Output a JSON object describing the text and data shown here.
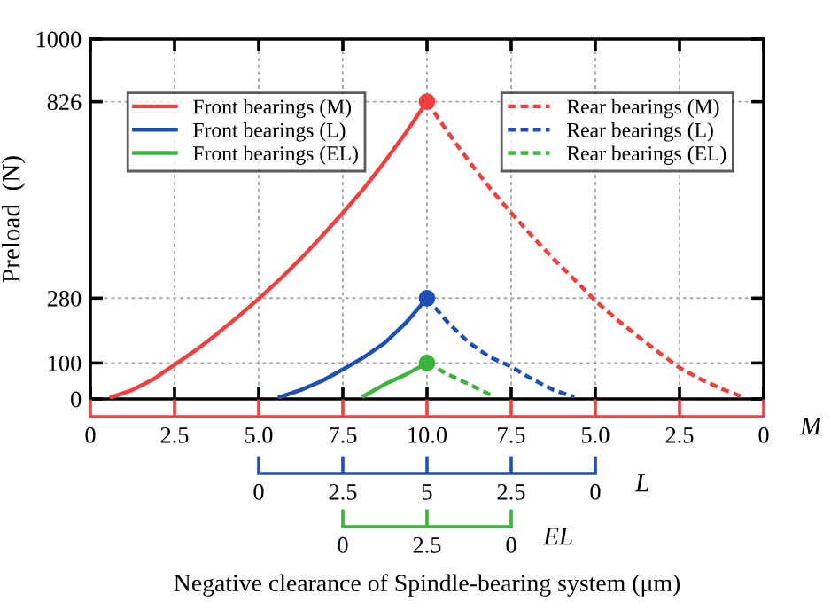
{
  "chart_data": [
    {
      "type": "line",
      "ylabel": "Preload  (N)",
      "xlabel": "M",
      "categories": [
        "0",
        null,
        null,
        null,
        "2.5",
        null,
        null,
        null,
        "5.0",
        null,
        null,
        null,
        "7.5",
        null,
        null,
        null,
        "10.0",
        null,
        null,
        null,
        "7.5",
        null,
        null,
        null,
        "5.0",
        null,
        null,
        null,
        "2.5",
        null,
        null,
        null,
        "0"
      ],
      "ylim": [
        0,
        1000
      ],
      "yticks": [
        0,
        100,
        280,
        826,
        1000
      ],
      "grid": true,
      "legend": "top",
      "marker": "none",
      "series": [
        {
          "name": "Front bearings (M)",
          "color": "#f04040",
          "line_style": "solid",
          "values": [
            null,
            5,
            25,
            55,
            95,
            135,
            180,
            228,
            278,
            332,
            390,
            452,
            517,
            585,
            660,
            740,
            826,
            null,
            null,
            null,
            null,
            null,
            null,
            null,
            null,
            null,
            null,
            null,
            null,
            null,
            null,
            null,
            null
          ]
        },
        {
          "name": "Front bearings (L)",
          "color": "#1f4fb4",
          "line_style": "solid",
          "values": [
            null,
            null,
            null,
            null,
            null,
            null,
            null,
            null,
            null,
            5,
            25,
            50,
            82,
            116,
            156,
            212,
            280,
            null,
            null,
            null,
            null,
            null,
            null,
            null,
            null,
            null,
            null,
            null,
            null,
            null,
            null,
            null,
            null
          ]
        },
        {
          "name": "Front bearings (EL)",
          "color": "#3cb43c",
          "line_style": "solid",
          "values": [
            null,
            null,
            null,
            null,
            null,
            null,
            null,
            null,
            null,
            null,
            null,
            null,
            null,
            8,
            41,
            68,
            100,
            null,
            null,
            null,
            null,
            null,
            null,
            null,
            null,
            null,
            null,
            null,
            null,
            null,
            null,
            null,
            null
          ]
        },
        {
          "name": "Rear bearings (M)",
          "color": "#f04040",
          "line_style": "dashed",
          "values": [
            null,
            null,
            null,
            null,
            null,
            null,
            null,
            null,
            null,
            null,
            null,
            null,
            null,
            null,
            null,
            null,
            826,
            740,
            660,
            585,
            517,
            452,
            390,
            332,
            273,
            222,
            175,
            130,
            87,
            55,
            28,
            6,
            null
          ]
        },
        {
          "name": "Rear bearings (L)",
          "color": "#1f4fb4",
          "line_style": "dashed",
          "values": [
            null,
            null,
            null,
            null,
            null,
            null,
            null,
            null,
            null,
            null,
            null,
            null,
            null,
            null,
            null,
            null,
            280,
            212,
            156,
            116,
            90,
            55,
            25,
            6,
            null,
            null,
            null,
            null,
            null,
            null,
            null,
            null,
            null
          ]
        },
        {
          "name": "Rear bearings (EL)",
          "color": "#3cb43c",
          "line_style": "dashed",
          "values": [
            null,
            null,
            null,
            null,
            null,
            null,
            null,
            null,
            null,
            null,
            null,
            null,
            null,
            null,
            null,
            null,
            100,
            68,
            41,
            12,
            null,
            null,
            null,
            null,
            null,
            null,
            null,
            null,
            null,
            null,
            null,
            null,
            null
          ]
        },
        {
          "type": "scatter",
          "marker": "circle",
          "color": "#f04040",
          "values": [
            null,
            null,
            null,
            null,
            null,
            null,
            null,
            null,
            null,
            null,
            null,
            null,
            null,
            null,
            null,
            null,
            826,
            null,
            null,
            null,
            null,
            null,
            null,
            null,
            null,
            null,
            null,
            null,
            null,
            null,
            null,
            null,
            null
          ]
        },
        {
          "type": "scatter",
          "marker": "circle",
          "color": "#1f4fb4",
          "values": [
            null,
            null,
            null,
            null,
            null,
            null,
            null,
            null,
            null,
            null,
            null,
            null,
            null,
            null,
            null,
            null,
            280,
            null,
            null,
            null,
            null,
            null,
            null,
            null,
            null,
            null,
            null,
            null,
            null,
            null,
            null,
            null,
            null
          ]
        },
        {
          "type": "scatter",
          "marker": "circle",
          "color": "#3cb43c",
          "values": [
            null,
            null,
            null,
            null,
            null,
            null,
            null,
            null,
            null,
            null,
            null,
            null,
            null,
            null,
            null,
            null,
            100,
            null,
            null,
            null,
            null,
            null,
            null,
            null,
            null,
            null,
            null,
            null,
            null,
            null,
            null,
            null,
            null
          ]
        }
      ]
    },
    {
      "type": "other",
      "xlabel": "L",
      "categories": [
        "0",
        "2.5",
        "5",
        "2.5",
        "0"
      ]
    },
    {
      "type": "other",
      "xlabel": "EL",
      "categories": [
        "0",
        "2.5",
        "0"
      ],
      "annotations": [
        "Negative clearance of Spindle-bearing system (μm)"
      ]
    }
  ]
}
